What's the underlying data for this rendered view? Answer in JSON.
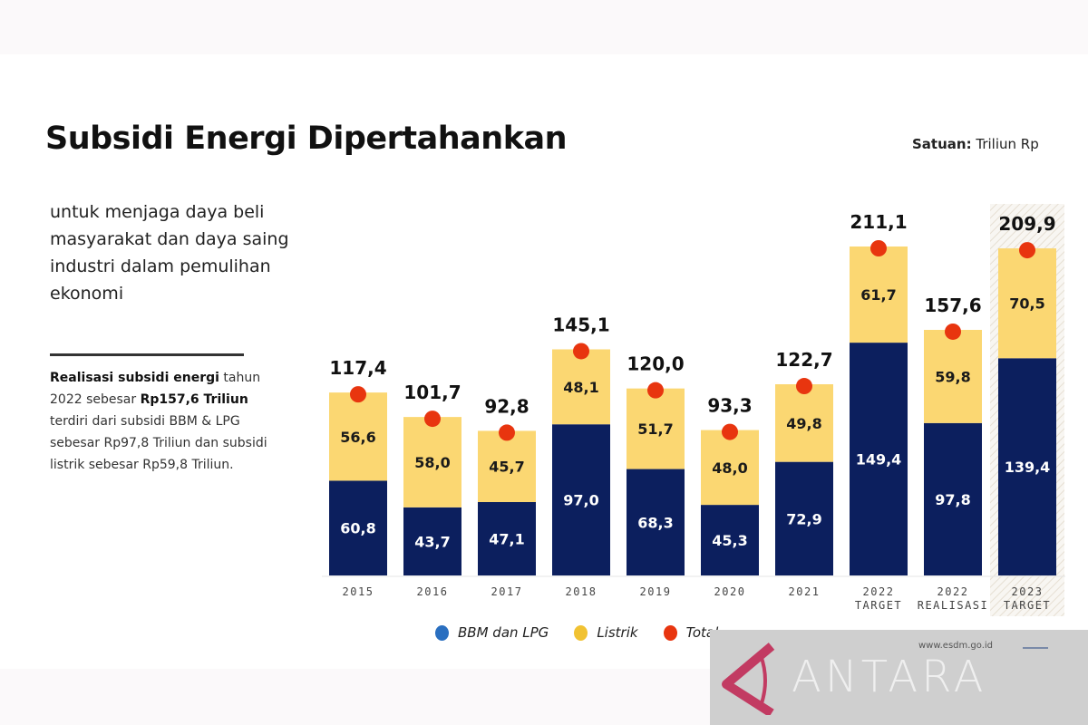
{
  "header": {
    "title": "Subsidi Energi Dipertahankan",
    "unit_label": "Satuan:",
    "unit_value": "Triliun Rp"
  },
  "subtitle": "untuk menjaga daya beli masyarakat dan daya saing industri dalam pemulihan ekonomi",
  "note": {
    "bold_1": "Realisasi subsidi energi",
    "text_1": "tahun 2022 sebesar ",
    "bold_2": "Rp157,6 Triliun",
    "text_2": " terdiri dari subsidi BBM & LPG sebesar  Rp97,8 Triliun dan subsidi listrik sebesar  Rp59,8 Triliun."
  },
  "legend": [
    {
      "label": "BBM dan LPG",
      "color": "#2a6fc0"
    },
    {
      "label": "Listrik",
      "color": "#f1c232"
    },
    {
      "label": "Total",
      "color": "#e8350f"
    }
  ],
  "watermark": {
    "brand": "ANTARA",
    "source": "www.esdm.go.id"
  },
  "colors": {
    "bbm": "#0c1f5e",
    "listrik": "#fbd772",
    "total_dot": "#e8350f",
    "highlight_hatch": "#e9e4dc"
  },
  "chart_data": {
    "type": "bar",
    "stacked": true,
    "title": "Subsidi Energi Dipertahankan",
    "unit": "Triliun Rp",
    "categories": [
      [
        "2015"
      ],
      [
        "2016"
      ],
      [
        "2017"
      ],
      [
        "2018"
      ],
      [
        "2019"
      ],
      [
        "2020"
      ],
      [
        "2021"
      ],
      [
        "2022",
        "TARGET"
      ],
      [
        "2022",
        "REALISASI"
      ],
      [
        "2023",
        "TARGET"
      ]
    ],
    "series": [
      {
        "name": "BBM dan LPG",
        "values": [
          60.8,
          43.7,
          47.1,
          97.0,
          68.3,
          45.3,
          72.9,
          149.4,
          97.8,
          139.4
        ],
        "labels": [
          "60,8",
          "43,7",
          "47,1",
          "97,0",
          "68,3",
          "45,3",
          "72,9",
          "149,4",
          "97,8",
          "139,4"
        ]
      },
      {
        "name": "Listrik",
        "values": [
          56.6,
          58.0,
          45.7,
          48.1,
          51.7,
          48.0,
          49.8,
          61.7,
          59.8,
          70.5
        ],
        "labels": [
          "56,6",
          "58,0",
          "45,7",
          "48,1",
          "51,7",
          "48,0",
          "49,8",
          "61,7",
          "59,8",
          "70,5"
        ]
      }
    ],
    "totals": [
      117.4,
      101.7,
      92.8,
      145.1,
      120.0,
      93.3,
      122.7,
      211.1,
      157.6,
      209.9
    ],
    "total_labels": [
      "117,4",
      "101,7",
      "92,8",
      "145,1",
      "120,0",
      "93,3",
      "122,7",
      "211,1",
      "157,6",
      "209,9"
    ],
    "highlighted_category_index": 9,
    "ylim": [
      0,
      220
    ],
    "grid": false,
    "legend_position": "bottom"
  }
}
